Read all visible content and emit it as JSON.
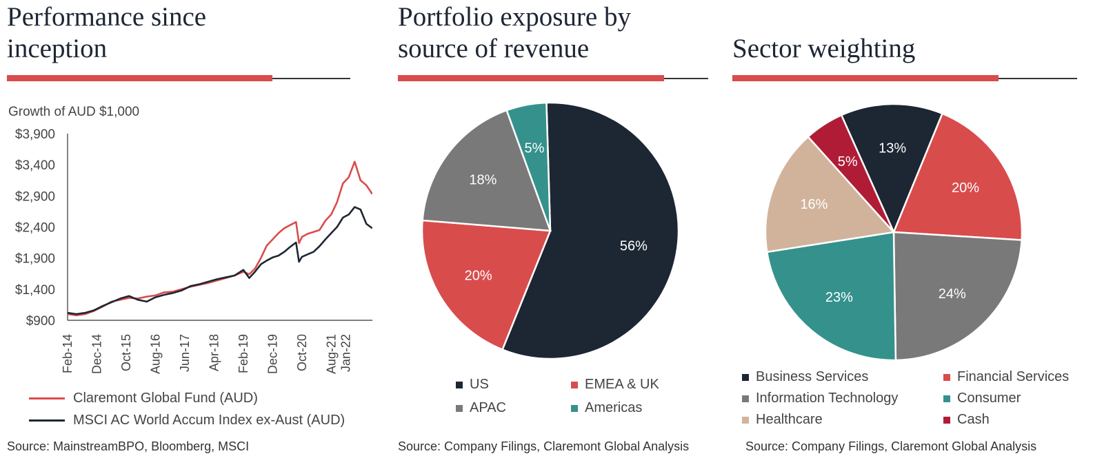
{
  "colors": {
    "accent": "#d94c4c",
    "navy": "#1d2633",
    "grey": "#797979",
    "teal": "#35918c",
    "beige": "#d1b39c",
    "crimson": "#b01c36"
  },
  "panel1": {
    "title_line1": "Performance since",
    "title_line2": "inception",
    "subtitle": "Growth of AUD $1,000",
    "source": "Source: MainstreamBPO, Bloomberg, MSCI"
  },
  "panel2": {
    "title_line1": "Portfolio exposure by",
    "title_line2": "source of revenue",
    "source": "Source: Company Filings, Claremont Global Analysis"
  },
  "panel3": {
    "title": "Sector weighting",
    "source": "Source: Company Filings, Claremont Global Analysis"
  },
  "chart_data": [
    {
      "type": "line",
      "ylabel": "Growth of AUD $1,000",
      "ylim": [
        900,
        3900
      ],
      "yticks": [
        "$900",
        "$1,400",
        "$1,900",
        "$2,400",
        "$2,900",
        "$3,400",
        "$3,900"
      ],
      "ytick_values": [
        900,
        1400,
        1900,
        2400,
        2900,
        3400,
        3900
      ],
      "x_tick_labels": [
        "Feb-14",
        "Dec-14",
        "Oct-15",
        "Aug-16",
        "Jun-17",
        "Apr-18",
        "Feb-19",
        "Dec-19",
        "Oct-20",
        "Aug-21",
        "Jan-22"
      ],
      "x_tick_months": [
        0,
        10,
        20,
        30,
        40,
        50,
        60,
        70,
        80,
        90,
        95
      ],
      "x_range_months": [
        0,
        105
      ],
      "series": [
        {
          "name": "Claremont Global Fund (AUD)",
          "color": "#d94c4c",
          "points": [
            [
              0,
              1000
            ],
            [
              3,
              980
            ],
            [
              6,
              1000
            ],
            [
              9,
              1050
            ],
            [
              12,
              1120
            ],
            [
              15,
              1200
            ],
            [
              18,
              1230
            ],
            [
              21,
              1260
            ],
            [
              24,
              1250
            ],
            [
              27,
              1280
            ],
            [
              30,
              1300
            ],
            [
              33,
              1350
            ],
            [
              36,
              1360
            ],
            [
              39,
              1400
            ],
            [
              42,
              1440
            ],
            [
              45,
              1470
            ],
            [
              48,
              1500
            ],
            [
              51,
              1540
            ],
            [
              54,
              1580
            ],
            [
              57,
              1620
            ],
            [
              60,
              1680
            ],
            [
              62,
              1640
            ],
            [
              64,
              1730
            ],
            [
              66,
              1900
            ],
            [
              68,
              2100
            ],
            [
              70,
              2200
            ],
            [
              72,
              2300
            ],
            [
              74,
              2380
            ],
            [
              76,
              2430
            ],
            [
              78,
              2480
            ],
            [
              79,
              2140
            ],
            [
              80,
              2240
            ],
            [
              82,
              2290
            ],
            [
              84,
              2320
            ],
            [
              86,
              2350
            ],
            [
              88,
              2500
            ],
            [
              90,
              2600
            ],
            [
              92,
              2800
            ],
            [
              94,
              3100
            ],
            [
              96,
              3200
            ],
            [
              98,
              3450
            ],
            [
              100,
              3150
            ],
            [
              102,
              3070
            ],
            [
              104,
              2930
            ]
          ]
        },
        {
          "name": "MSCI AC World Accum Index ex-Aust (AUD)",
          "color": "#1d2633",
          "points": [
            [
              0,
              1020
            ],
            [
              3,
              1000
            ],
            [
              6,
              1020
            ],
            [
              9,
              1060
            ],
            [
              12,
              1130
            ],
            [
              15,
              1190
            ],
            [
              18,
              1250
            ],
            [
              21,
              1290
            ],
            [
              24,
              1230
            ],
            [
              27,
              1200
            ],
            [
              30,
              1270
            ],
            [
              33,
              1310
            ],
            [
              36,
              1340
            ],
            [
              39,
              1380
            ],
            [
              42,
              1450
            ],
            [
              45,
              1480
            ],
            [
              48,
              1520
            ],
            [
              51,
              1560
            ],
            [
              54,
              1590
            ],
            [
              57,
              1620
            ],
            [
              60,
              1710
            ],
            [
              62,
              1580
            ],
            [
              64,
              1680
            ],
            [
              66,
              1800
            ],
            [
              68,
              1860
            ],
            [
              70,
              1910
            ],
            [
              72,
              1940
            ],
            [
              74,
              2000
            ],
            [
              76,
              2080
            ],
            [
              78,
              2150
            ],
            [
              79,
              1840
            ],
            [
              80,
              1920
            ],
            [
              82,
              1960
            ],
            [
              84,
              2000
            ],
            [
              86,
              2090
            ],
            [
              88,
              2200
            ],
            [
              90,
              2300
            ],
            [
              92,
              2400
            ],
            [
              94,
              2550
            ],
            [
              96,
              2600
            ],
            [
              98,
              2720
            ],
            [
              100,
              2680
            ],
            [
              102,
              2450
            ],
            [
              104,
              2380
            ]
          ]
        }
      ]
    },
    {
      "type": "pie",
      "slices": [
        {
          "label": "US",
          "value": 56,
          "display": "56%",
          "color": "#1d2633"
        },
        {
          "label": "EMEA & UK",
          "value": 20,
          "display": "20%",
          "color": "#d94c4c"
        },
        {
          "label": "APAC",
          "value": 18,
          "display": "18%",
          "color": "#797979"
        },
        {
          "label": "Americas",
          "value": 5,
          "display": "5%",
          "color": "#35918c"
        }
      ]
    },
    {
      "type": "pie",
      "slices": [
        {
          "label": "Business Services",
          "value": 13,
          "display": "13%",
          "color": "#1d2633"
        },
        {
          "label": "Financial Services",
          "value": 20,
          "display": "20%",
          "color": "#d94c4c"
        },
        {
          "label": "Information Technology",
          "value": 24,
          "display": "24%",
          "color": "#797979"
        },
        {
          "label": "Consumer",
          "value": 23,
          "display": "23%",
          "color": "#35918c"
        },
        {
          "label": "Healthcare",
          "value": 16,
          "display": "16%",
          "color": "#d1b39c"
        },
        {
          "label": "Cash",
          "value": 5,
          "display": "5%",
          "color": "#b01c36"
        }
      ]
    }
  ]
}
